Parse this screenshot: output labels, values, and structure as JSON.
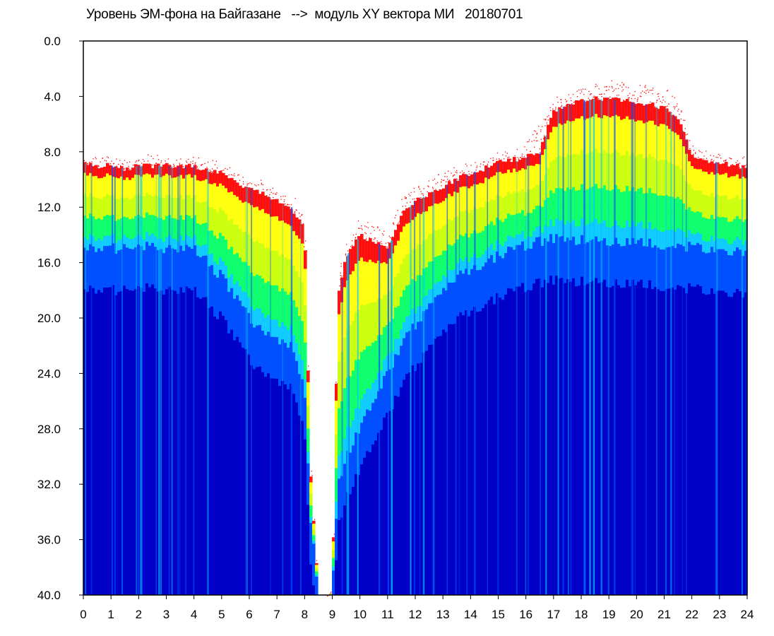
{
  "title": "Уровень ЭМ-фона на Байгазане   -->  модуль XY вектора МИ   20180701",
  "chart_data": {
    "type": "heatmap",
    "title": "Уровень ЭМ-фона на Байгазане   -->  модуль XY вектора МИ   20180701",
    "xlabel": "",
    "ylabel": "",
    "xlim": [
      0,
      24
    ],
    "ylim": [
      0,
      40
    ],
    "y_inverted": true,
    "x_ticks": [
      "0",
      "1",
      "2",
      "3",
      "4",
      "5",
      "6",
      "7",
      "8",
      "9",
      "10",
      "11",
      "12",
      "13",
      "14",
      "15",
      "16",
      "17",
      "18",
      "19",
      "20",
      "21",
      "22",
      "23",
      "24"
    ],
    "y_ticks": [
      "0.0",
      "4.0",
      "8.0",
      "12.0",
      "16.0",
      "20.0",
      "24.0",
      "28.0",
      "32.0",
      "36.0",
      "40.0"
    ],
    "colormap": [
      "#0000c8",
      "#0050ff",
      "#00c8ff",
      "#00ff64",
      "#c8ff00",
      "#ffff00",
      "#ff0000"
    ],
    "grid": false,
    "series": [
      {
        "x": [
          0,
          0.5,
          1,
          1.5,
          2,
          2.5,
          3,
          3.5,
          4,
          4.5,
          5,
          5.5,
          6,
          6.5,
          7,
          7.5,
          8,
          8.2,
          8.5,
          8.8,
          9,
          9.2,
          9.5,
          10,
          10.5,
          11,
          11.5,
          12,
          12.5,
          13,
          13.5,
          14,
          14.5,
          15,
          15.5,
          16,
          16.5,
          17,
          17.5,
          18,
          18.5,
          19,
          19.5,
          20,
          20.5,
          21,
          21.5,
          22,
          22.5,
          23,
          23.5,
          24
        ],
        "signal_top": [
          8.2,
          8.3,
          8.4,
          8.6,
          8.4,
          8.3,
          8.4,
          8.5,
          8.4,
          8.7,
          9.0,
          9.6,
          10.0,
          10.3,
          10.8,
          11.2,
          12.5,
          30.0,
          40.0,
          40.0,
          40.0,
          17.0,
          14.5,
          13.0,
          13.5,
          14.0,
          11.5,
          10.5,
          10.0,
          9.5,
          9.0,
          8.8,
          8.6,
          8.2,
          8.0,
          7.6,
          6.0,
          4.2,
          3.6,
          3.2,
          3.0,
          3.0,
          3.2,
          3.2,
          3.4,
          3.6,
          4.4,
          7.4,
          8.0,
          8.3,
          8.5,
          8.6
        ],
        "dense_top": [
          8.8,
          9.0,
          9.0,
          9.2,
          9.0,
          9.0,
          9.0,
          9.1,
          9.0,
          9.3,
          9.6,
          10.2,
          10.6,
          11.0,
          11.6,
          12.0,
          13.5,
          31.0,
          40.0,
          40.0,
          40.0,
          18.5,
          15.5,
          14.0,
          14.5,
          15.0,
          12.5,
          11.5,
          11.0,
          10.5,
          10.0,
          9.5,
          9.2,
          8.8,
          8.6,
          8.4,
          8.0,
          5.0,
          4.6,
          4.3,
          4.2,
          4.2,
          4.3,
          4.5,
          4.6,
          4.8,
          5.6,
          8.2,
          8.6,
          8.8,
          9.0,
          9.2
        ],
        "blue_top": [
          14.8,
          15.0,
          15.0,
          15.0,
          14.8,
          14.8,
          15.0,
          15.0,
          15.0,
          16.0,
          17.0,
          18.5,
          20.0,
          21.0,
          21.5,
          22.0,
          25.0,
          34.0,
          40.0,
          40.0,
          40.0,
          32.0,
          30.0,
          28.0,
          26.0,
          24.0,
          22.0,
          20.5,
          19.0,
          18.0,
          17.0,
          16.5,
          16.0,
          15.5,
          15.0,
          14.8,
          14.5,
          14.2,
          14.2,
          14.4,
          14.5,
          14.5,
          14.5,
          14.5,
          14.6,
          14.7,
          14.8,
          14.9,
          15.0,
          15.0,
          15.1,
          15.3
        ]
      }
    ]
  }
}
